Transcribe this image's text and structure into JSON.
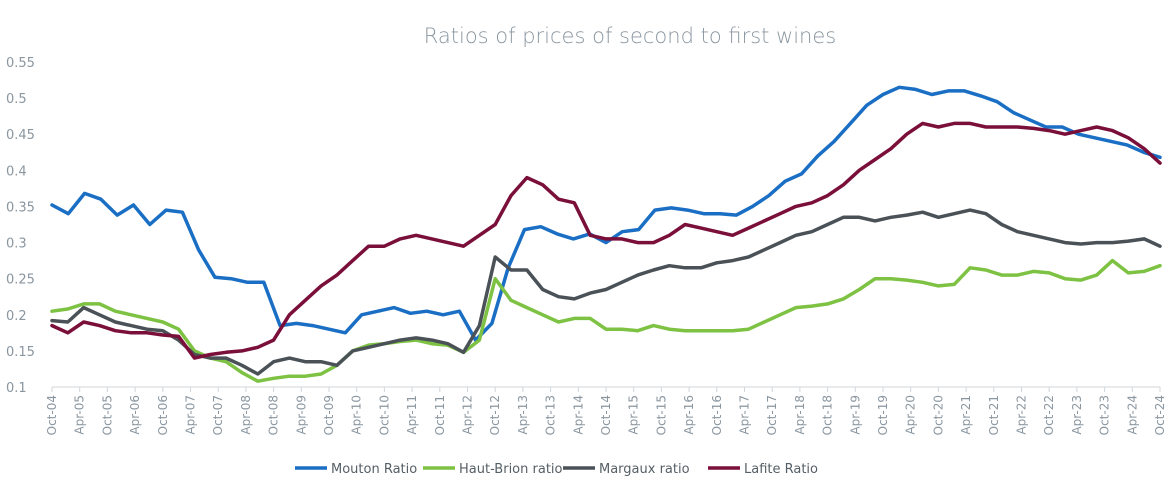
{
  "chart_data": {
    "type": "line",
    "title": "Ratios of prices of second to first wines",
    "xlabel": "",
    "ylabel": "",
    "ylim": [
      0.1,
      0.55
    ],
    "yticks": [
      "0.1",
      "0.15",
      "0.2",
      "0.25",
      "0.3",
      "0.35",
      "0.4",
      "0.45",
      "0.5",
      "0.55"
    ],
    "grid": "none",
    "legend_position": "bottom",
    "xticks": [
      "Oct-04",
      "Apr-05",
      "Oct-05",
      "Apr-06",
      "Oct-06",
      "Apr-07",
      "Oct-07",
      "Apr-08",
      "Oct-08",
      "Apr-09",
      "Oct-09",
      "Apr-10",
      "Oct-10",
      "Apr-11",
      "Oct-11",
      "Apr-12",
      "Oct-12",
      "Apr-13",
      "Oct-13",
      "Apr-14",
      "Oct-14",
      "Apr-15",
      "Oct-15",
      "Apr-16",
      "Oct-16",
      "Apr-17",
      "Oct-17",
      "Apr-18",
      "Oct-18",
      "Apr-19",
      "Oct-19",
      "Apr-20",
      "Oct-20",
      "Apr-21",
      "Oct-21",
      "Apr-22",
      "Oct-22",
      "Apr-23",
      "Oct-23",
      "Apr-24",
      "Oct-24"
    ],
    "series": [
      {
        "name": "Mouton Ratio",
        "color": "#1a6fc4",
        "values": [
          0.352,
          0.34,
          0.368,
          0.36,
          0.338,
          0.352,
          0.325,
          0.345,
          0.342,
          0.29,
          0.252,
          0.25,
          0.245,
          0.245,
          0.185,
          0.188,
          0.185,
          0.18,
          0.175,
          0.2,
          0.205,
          0.21,
          0.202,
          0.205,
          0.2,
          0.205,
          0.165,
          0.188,
          0.265,
          0.318,
          0.322,
          0.312,
          0.305,
          0.312,
          0.3,
          0.315,
          0.318,
          0.345,
          0.348,
          0.345,
          0.34,
          0.34,
          0.338,
          0.35,
          0.365,
          0.385,
          0.395,
          0.42,
          0.44,
          0.465,
          0.49,
          0.505,
          0.515,
          0.512,
          0.505,
          0.51,
          0.51,
          0.503,
          0.495,
          0.48,
          0.47,
          0.46,
          0.46,
          0.45,
          0.445,
          0.44,
          0.435,
          0.425,
          0.418
        ]
      },
      {
        "name": "Haut-Brion ratio",
        "color": "#7dc242",
        "values": [
          0.205,
          0.208,
          0.215,
          0.215,
          0.205,
          0.2,
          0.195,
          0.19,
          0.18,
          0.15,
          0.14,
          0.135,
          0.12,
          0.108,
          0.112,
          0.115,
          0.115,
          0.118,
          0.13,
          0.15,
          0.158,
          0.16,
          0.163,
          0.165,
          0.16,
          0.158,
          0.148,
          0.165,
          0.25,
          0.22,
          0.21,
          0.2,
          0.19,
          0.195,
          0.195,
          0.18,
          0.18,
          0.178,
          0.185,
          0.18,
          0.178,
          0.178,
          0.178,
          0.178,
          0.18,
          0.19,
          0.2,
          0.21,
          0.212,
          0.215,
          0.222,
          0.235,
          0.25,
          0.25,
          0.248,
          0.245,
          0.24,
          0.242,
          0.265,
          0.262,
          0.255,
          0.255,
          0.26,
          0.258,
          0.25,
          0.248,
          0.255,
          0.275,
          0.258,
          0.26,
          0.268
        ]
      },
      {
        "name": "Margaux ratio",
        "color": "#4a5258",
        "values": [
          0.192,
          0.19,
          0.21,
          0.2,
          0.19,
          0.185,
          0.18,
          0.178,
          0.165,
          0.145,
          0.14,
          0.14,
          0.13,
          0.118,
          0.135,
          0.14,
          0.135,
          0.135,
          0.13,
          0.15,
          0.155,
          0.16,
          0.165,
          0.168,
          0.165,
          0.16,
          0.148,
          0.185,
          0.28,
          0.262,
          0.262,
          0.235,
          0.225,
          0.222,
          0.23,
          0.235,
          0.245,
          0.255,
          0.262,
          0.268,
          0.265,
          0.265,
          0.272,
          0.275,
          0.28,
          0.29,
          0.3,
          0.31,
          0.315,
          0.325,
          0.335,
          0.335,
          0.33,
          0.335,
          0.338,
          0.342,
          0.335,
          0.34,
          0.345,
          0.34,
          0.325,
          0.315,
          0.31,
          0.305,
          0.3,
          0.298,
          0.3,
          0.3,
          0.302,
          0.305,
          0.295
        ]
      },
      {
        "name": "Lafite Ratio",
        "color": "#7a0f3a",
        "values": [
          0.185,
          0.175,
          0.19,
          0.185,
          0.178,
          0.175,
          0.175,
          0.172,
          0.17,
          0.14,
          0.145,
          0.148,
          0.15,
          0.155,
          0.165,
          0.2,
          0.22,
          0.24,
          0.255,
          0.275,
          0.295,
          0.295,
          0.305,
          0.31,
          0.305,
          0.3,
          0.295,
          0.31,
          0.325,
          0.365,
          0.39,
          0.38,
          0.36,
          0.355,
          0.31,
          0.305,
          0.305,
          0.3,
          0.3,
          0.31,
          0.325,
          0.32,
          0.315,
          0.31,
          0.32,
          0.33,
          0.34,
          0.35,
          0.355,
          0.365,
          0.38,
          0.4,
          0.415,
          0.43,
          0.45,
          0.465,
          0.46,
          0.465,
          0.465,
          0.46,
          0.46,
          0.46,
          0.458,
          0.455,
          0.45,
          0.455,
          0.46,
          0.455,
          0.445,
          0.43,
          0.41
        ]
      }
    ]
  }
}
